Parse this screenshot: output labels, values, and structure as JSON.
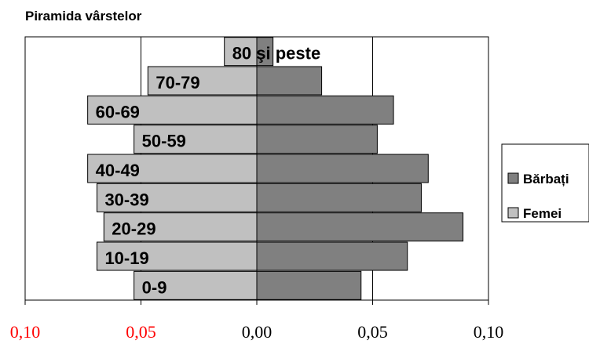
{
  "chart_data": {
    "type": "bar",
    "orientation": "horizontal",
    "layout": "population-pyramid",
    "title": "Piramida vârstelor",
    "categories": [
      "0-9",
      "10-19",
      "20-29",
      "30-39",
      "40-49",
      "50-59",
      "60-69",
      "70-79",
      "80 şi peste"
    ],
    "series": [
      {
        "name": "Bărbați",
        "color": "#808080",
        "side": "right",
        "values": [
          0.045,
          0.065,
          0.089,
          0.071,
          0.074,
          0.052,
          0.059,
          0.028,
          0.007
        ]
      },
      {
        "name": "Femei",
        "color": "#c0c0c0",
        "side": "left",
        "values": [
          0.053,
          0.069,
          0.066,
          0.069,
          0.073,
          0.053,
          0.073,
          0.047,
          0.014
        ]
      }
    ],
    "x_ticks": [
      {
        "label": "0,10",
        "color": "#ff0000"
      },
      {
        "label": "0,05",
        "color": "#ff0000"
      },
      {
        "label": "0,00",
        "color": "#000000"
      },
      {
        "label": "0,05",
        "color": "#000000"
      },
      {
        "label": "0,10",
        "color": "#000000"
      }
    ],
    "xlim": [
      -0.1,
      0.1
    ],
    "xlabel": "",
    "ylabel": "",
    "grid": "vertical lines at 0.05 intervals",
    "legend_position": "right"
  }
}
